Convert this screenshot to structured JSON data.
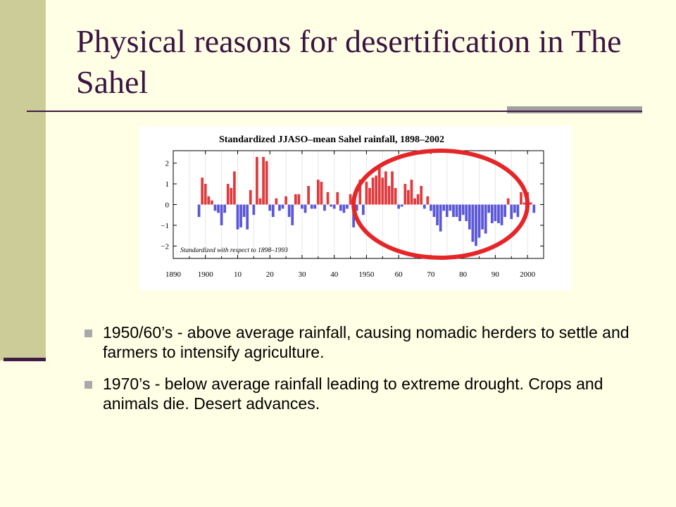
{
  "slide": {
    "title": "Physical reasons for desertification in The Sahel",
    "bullets": [
      "1950/60’s - above average rainfall, causing nomadic herders to settle and farmers to intensify agriculture.",
      "1970’s - below average rainfall leading to extreme drought. Crops and animals die. Desert advances."
    ],
    "colors": {
      "background": "#FFFFE5",
      "left_bar": "#CCCC99",
      "title": "#3C1343",
      "rule": "#3F1B45",
      "accent": "#A0A0A0",
      "bullet_marker": "#A9A9A9"
    }
  },
  "chart_data": {
    "type": "bar",
    "title": "Standardized JJASO–mean Sahel rainfall, 1898–2002",
    "annotation": "Standardized with respect to 1898–1993",
    "xlabel": "",
    "ylabel": "",
    "xlim": [
      1890,
      2005
    ],
    "ylim": [
      -2.6,
      2.6
    ],
    "xticks": [
      "1890",
      "1900",
      "10",
      "20",
      "30",
      "40",
      "1950",
      "60",
      "70",
      "80",
      "90",
      "2000"
    ],
    "yticks": [
      "2",
      "1",
      "0",
      "−1",
      "−2"
    ],
    "x": [
      1898,
      1899,
      1900,
      1901,
      1902,
      1903,
      1904,
      1905,
      1906,
      1907,
      1908,
      1909,
      1910,
      1911,
      1912,
      1913,
      1914,
      1915,
      1916,
      1917,
      1918,
      1919,
      1920,
      1921,
      1922,
      1923,
      1924,
      1925,
      1926,
      1927,
      1928,
      1929,
      1930,
      1931,
      1932,
      1933,
      1934,
      1935,
      1936,
      1937,
      1938,
      1939,
      1940,
      1941,
      1942,
      1943,
      1944,
      1945,
      1946,
      1947,
      1948,
      1949,
      1950,
      1951,
      1952,
      1953,
      1954,
      1955,
      1956,
      1957,
      1958,
      1959,
      1960,
      1961,
      1962,
      1963,
      1964,
      1965,
      1966,
      1967,
      1968,
      1969,
      1970,
      1971,
      1972,
      1973,
      1974,
      1975,
      1976,
      1977,
      1978,
      1979,
      1980,
      1981,
      1982,
      1983,
      1984,
      1985,
      1986,
      1987,
      1988,
      1989,
      1990,
      1991,
      1992,
      1993,
      1994,
      1995,
      1996,
      1997,
      1998,
      1999,
      2000,
      2001,
      2002
    ],
    "values": [
      -0.6,
      1.3,
      1.0,
      0.4,
      0.2,
      -0.3,
      -0.4,
      -1.0,
      -0.4,
      1.0,
      0.8,
      1.6,
      -1.2,
      -1.1,
      -0.6,
      -1.2,
      0.7,
      -0.5,
      2.3,
      0.3,
      2.3,
      2.1,
      -0.3,
      -0.6,
      0.3,
      -0.3,
      -0.2,
      0.4,
      -0.6,
      -1.0,
      0.5,
      0.5,
      -0.2,
      -0.4,
      0.9,
      -0.2,
      -0.2,
      1.2,
      1.1,
      -0.3,
      0.6,
      -0.1,
      -0.2,
      0.6,
      -0.3,
      -0.4,
      -0.2,
      0.5,
      -1.1,
      -0.3,
      1.2,
      -0.5,
      1.1,
      0.8,
      1.3,
      1.4,
      1.8,
      1.3,
      1.6,
      0.9,
      1.6,
      0.8,
      -0.2,
      -0.1,
      1.0,
      0.7,
      1.2,
      0.3,
      0.5,
      0.9,
      -0.2,
      0.4,
      -0.3,
      -0.6,
      -1.0,
      -1.3,
      -0.3,
      -0.6,
      -0.3,
      -0.6,
      -0.6,
      -0.8,
      -0.5,
      -0.8,
      -1.2,
      -1.8,
      -2.0,
      -1.6,
      -1.2,
      -1.4,
      -0.4,
      -0.9,
      -0.8,
      -0.9,
      -1.0,
      -0.6,
      0.3,
      -0.7,
      -0.4,
      -0.6,
      0.6,
      0.1,
      0.6,
      0.1,
      -0.4
    ],
    "positive_color": "#DF3B3E",
    "negative_color": "#5B57D6",
    "highlight": {
      "shape": "ellipse",
      "color": "#E52629",
      "x_range": [
        1946,
        2000
      ]
    },
    "grid": true
  }
}
